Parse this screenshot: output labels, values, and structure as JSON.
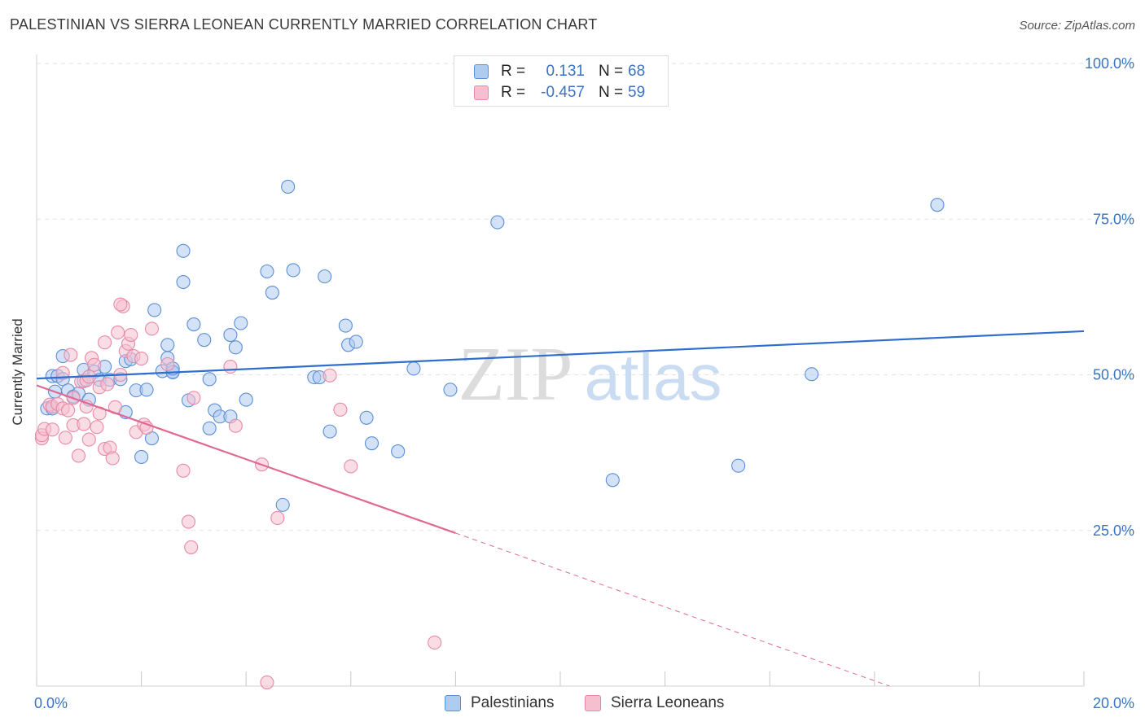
{
  "title": "PALESTINIAN VS SIERRA LEONEAN CURRENTLY MARRIED CORRELATION CHART",
  "source": "Source: ZipAtlas.com",
  "watermark": {
    "zip": "ZIP",
    "atlas": "atlas"
  },
  "legend_top": {
    "rows": [
      {
        "r_label": "R =",
        "r_value": "0.131",
        "n_label": "N =",
        "n_value": "68"
      },
      {
        "r_label": "R =",
        "r_value": "-0.457",
        "n_label": "N =",
        "n_value": "59"
      }
    ]
  },
  "legend_bottom": {
    "items": [
      "Palestinians",
      "Sierra Leoneans"
    ]
  },
  "colors": {
    "blue_fill": "#aecbf0",
    "blue_stroke": "#5b8fd6",
    "blue_line": "#2f6fcb",
    "pink_fill": "#f6bfd0",
    "pink_stroke": "#e68aa8",
    "pink_line": "#e06893",
    "axis_text": "#3b73c4",
    "grid": "#e2e2e2"
  },
  "chart_data": {
    "type": "scatter",
    "title": "PALESTINIAN VS SIERRA LEONEAN CURRENTLY MARRIED CORRELATION CHART",
    "xlabel": "",
    "ylabel": "Currently Married",
    "x_ticklabels": [
      "0.0%",
      "20.0%"
    ],
    "y_ticklabels": [
      "100.0%",
      "75.0%",
      "50.0%",
      "25.0%"
    ],
    "xlim": [
      0,
      20
    ],
    "ylim": [
      0,
      100
    ],
    "y_ticks": [
      100,
      75,
      50,
      25
    ],
    "series": [
      {
        "name": "Palestinians",
        "r": 0.131,
        "n": 68,
        "trend": {
          "x": [
            0,
            20
          ],
          "y": [
            49.4,
            57.0
          ],
          "dashed_from_x": null
        },
        "points": [
          [
            0.3,
            49.8
          ],
          [
            0.4,
            49.8
          ],
          [
            0.5,
            49.3
          ],
          [
            0.6,
            47.5
          ],
          [
            0.7,
            46.5
          ],
          [
            0.9,
            50.8
          ],
          [
            0.9,
            49.0
          ],
          [
            1.1,
            50.5
          ],
          [
            1.2,
            49.2
          ],
          [
            1.3,
            51.3
          ],
          [
            1.4,
            49.2
          ],
          [
            1.6,
            49.3
          ],
          [
            1.7,
            52.2
          ],
          [
            1.7,
            44.0
          ],
          [
            1.8,
            52.5
          ],
          [
            1.9,
            47.5
          ],
          [
            2.0,
            36.8
          ],
          [
            2.1,
            47.6
          ],
          [
            2.2,
            39.8
          ],
          [
            2.25,
            60.4
          ],
          [
            2.4,
            50.6
          ],
          [
            2.5,
            54.8
          ],
          [
            2.5,
            52.7
          ],
          [
            2.6,
            50.5
          ],
          [
            2.6,
            50.4
          ],
          [
            2.8,
            64.9
          ],
          [
            2.8,
            69.9
          ],
          [
            2.9,
            45.9
          ],
          [
            3.0,
            58.1
          ],
          [
            3.2,
            55.6
          ],
          [
            3.3,
            41.4
          ],
          [
            3.3,
            49.3
          ],
          [
            3.4,
            44.3
          ],
          [
            3.5,
            43.3
          ],
          [
            3.7,
            56.4
          ],
          [
            3.7,
            43.3
          ],
          [
            3.8,
            54.4
          ],
          [
            3.9,
            58.3
          ],
          [
            4.0,
            46.0
          ],
          [
            4.4,
            66.6
          ],
          [
            4.5,
            63.2
          ],
          [
            4.7,
            29.1
          ],
          [
            4.8,
            80.2
          ],
          [
            4.9,
            66.8
          ],
          [
            5.3,
            49.6
          ],
          [
            5.4,
            49.6
          ],
          [
            5.5,
            65.8
          ],
          [
            5.6,
            40.9
          ],
          [
            5.9,
            57.9
          ],
          [
            5.95,
            54.8
          ],
          [
            6.1,
            55.3
          ],
          [
            6.3,
            43.1
          ],
          [
            6.4,
            39.0
          ],
          [
            6.9,
            37.7
          ],
          [
            7.2,
            51.0
          ],
          [
            7.9,
            47.6
          ],
          [
            8.8,
            74.5
          ],
          [
            11.0,
            33.1
          ],
          [
            13.4,
            35.4
          ],
          [
            14.8,
            50.1
          ],
          [
            17.2,
            77.3
          ],
          [
            0.2,
            44.6
          ],
          [
            0.3,
            44.6
          ],
          [
            0.35,
            47.3
          ],
          [
            0.5,
            53.0
          ],
          [
            0.8,
            47.0
          ],
          [
            1.0,
            46.0
          ],
          [
            2.6,
            51.0
          ]
        ]
      },
      {
        "name": "Sierra Leoneans",
        "r": -0.457,
        "n": 59,
        "trend": {
          "x": [
            0,
            20
          ],
          "y": [
            48.3,
            -11.0
          ],
          "dashed_from_x": 8.0
        },
        "points": [
          [
            0.1,
            39.8
          ],
          [
            0.1,
            40.3
          ],
          [
            0.15,
            41.3
          ],
          [
            0.25,
            45.2
          ],
          [
            0.3,
            44.9
          ],
          [
            0.3,
            41.2
          ],
          [
            0.4,
            45.3
          ],
          [
            0.5,
            44.6
          ],
          [
            0.5,
            50.3
          ],
          [
            0.55,
            39.9
          ],
          [
            0.6,
            44.3
          ],
          [
            0.65,
            53.2
          ],
          [
            0.7,
            46.3
          ],
          [
            0.7,
            41.9
          ],
          [
            0.8,
            37.0
          ],
          [
            0.85,
            48.9
          ],
          [
            0.9,
            42.1
          ],
          [
            0.95,
            44.9
          ],
          [
            0.95,
            49.1
          ],
          [
            1.0,
            39.6
          ],
          [
            1.0,
            49.7
          ],
          [
            1.05,
            52.7
          ],
          [
            1.1,
            51.6
          ],
          [
            1.15,
            41.6
          ],
          [
            1.2,
            43.8
          ],
          [
            1.2,
            48.0
          ],
          [
            1.3,
            55.2
          ],
          [
            1.3,
            38.1
          ],
          [
            1.35,
            48.5
          ],
          [
            1.4,
            38.3
          ],
          [
            1.45,
            36.6
          ],
          [
            1.5,
            44.8
          ],
          [
            1.55,
            56.8
          ],
          [
            1.6,
            50.0
          ],
          [
            1.65,
            61.0
          ],
          [
            1.7,
            53.8
          ],
          [
            1.75,
            55.0
          ],
          [
            1.8,
            56.4
          ],
          [
            1.85,
            53.0
          ],
          [
            1.9,
            40.8
          ],
          [
            2.0,
            52.6
          ],
          [
            2.05,
            42.0
          ],
          [
            2.1,
            41.5
          ],
          [
            2.2,
            57.4
          ],
          [
            2.5,
            51.7
          ],
          [
            2.8,
            34.6
          ],
          [
            2.9,
            26.4
          ],
          [
            2.95,
            22.3
          ],
          [
            3.0,
            46.3
          ],
          [
            3.7,
            51.3
          ],
          [
            3.8,
            41.8
          ],
          [
            4.3,
            35.6
          ],
          [
            4.6,
            27.0
          ],
          [
            5.6,
            49.9
          ],
          [
            5.8,
            44.4
          ],
          [
            6.0,
            35.3
          ],
          [
            7.6,
            7.0
          ],
          [
            4.4,
            0.6
          ],
          [
            1.6,
            61.3
          ]
        ]
      }
    ]
  }
}
